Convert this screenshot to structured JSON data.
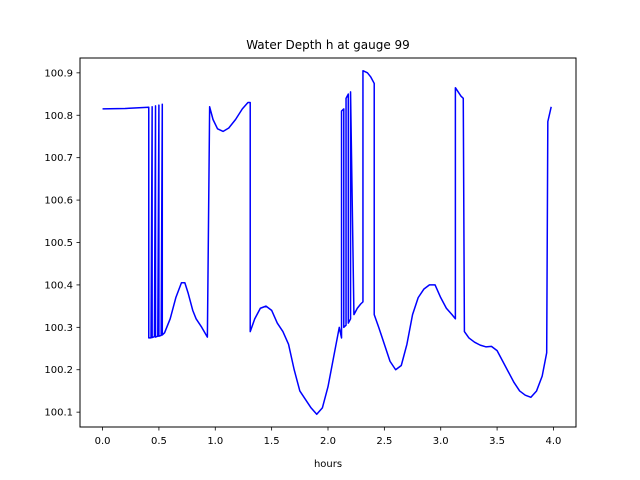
{
  "chart_data": {
    "type": "line",
    "title": "Water Depth h at gauge 99",
    "xlabel": "hours",
    "ylabel": "",
    "xlim": [
      -0.2,
      4.2
    ],
    "ylim": [
      100.065,
      100.935
    ],
    "grid": false,
    "x_ticks": [
      0.0,
      0.5,
      1.0,
      1.5,
      2.0,
      2.5,
      3.0,
      3.5,
      4.0
    ],
    "x_tick_labels": [
      "0.0",
      "0.5",
      "1.0",
      "1.5",
      "2.0",
      "2.5",
      "3.0",
      "3.5",
      "4.0"
    ],
    "y_ticks": [
      100.1,
      100.2,
      100.3,
      100.4,
      100.5,
      100.6,
      100.7,
      100.8,
      100.9
    ],
    "y_tick_labels": [
      "100.1",
      "100.2",
      "100.3",
      "100.4",
      "100.5",
      "100.6",
      "100.7",
      "100.8",
      "100.9"
    ],
    "series": [
      {
        "color": "#0000ff",
        "x": [
          0.0,
          0.2,
          0.41,
          0.41,
          0.43,
          0.44,
          0.44,
          0.46,
          0.47,
          0.47,
          0.49,
          0.5,
          0.5,
          0.52,
          0.53,
          0.53,
          0.55,
          0.6,
          0.65,
          0.7,
          0.73,
          0.76,
          0.8,
          0.83,
          0.88,
          0.93,
          0.95,
          0.96,
          0.98,
          1.02,
          1.07,
          1.12,
          1.18,
          1.24,
          1.29,
          1.31,
          1.31,
          1.35,
          1.4,
          1.45,
          1.5,
          1.55,
          1.6,
          1.65,
          1.7,
          1.75,
          1.8,
          1.85,
          1.9,
          1.95,
          2.0,
          2.05,
          2.1,
          2.12,
          2.12,
          2.14,
          2.14,
          2.16,
          2.16,
          2.18,
          2.18,
          2.2,
          2.2,
          2.23,
          2.26,
          2.29,
          2.31,
          2.31,
          2.35,
          2.38,
          2.41,
          2.41,
          2.45,
          2.5,
          2.55,
          2.6,
          2.65,
          2.7,
          2.75,
          2.8,
          2.85,
          2.9,
          2.95,
          3.0,
          3.05,
          3.1,
          3.13,
          3.13,
          3.18,
          3.2,
          3.21,
          3.25,
          3.3,
          3.35,
          3.4,
          3.45,
          3.5,
          3.55,
          3.6,
          3.65,
          3.7,
          3.75,
          3.8,
          3.85,
          3.9,
          3.94,
          3.95,
          3.98
        ],
        "y": [
          100.815,
          100.816,
          100.819,
          100.275,
          100.275,
          100.82,
          100.276,
          100.278,
          100.822,
          100.277,
          100.279,
          100.824,
          100.279,
          100.281,
          100.826,
          100.282,
          100.287,
          100.32,
          100.37,
          100.405,
          100.405,
          100.38,
          100.34,
          100.32,
          100.3,
          100.277,
          100.82,
          100.81,
          100.79,
          100.768,
          100.762,
          100.77,
          100.79,
          100.815,
          100.83,
          100.83,
          100.29,
          100.32,
          100.345,
          100.35,
          100.34,
          100.31,
          100.29,
          100.26,
          100.2,
          100.15,
          100.13,
          100.11,
          100.095,
          100.11,
          100.16,
          100.23,
          100.3,
          100.275,
          100.81,
          100.815,
          100.3,
          100.305,
          100.84,
          100.85,
          100.31,
          100.32,
          100.855,
          100.33,
          100.345,
          100.355,
          100.36,
          100.905,
          100.9,
          100.89,
          100.875,
          100.33,
          100.3,
          100.26,
          100.22,
          100.2,
          100.21,
          100.26,
          100.33,
          100.37,
          100.39,
          100.4,
          100.4,
          100.37,
          100.345,
          100.33,
          100.32,
          100.865,
          100.845,
          100.84,
          100.29,
          100.275,
          100.265,
          100.258,
          100.254,
          100.255,
          100.245,
          100.22,
          100.195,
          100.17,
          100.15,
          100.14,
          100.135,
          100.15,
          100.185,
          100.24,
          100.785,
          100.82
        ]
      }
    ]
  }
}
